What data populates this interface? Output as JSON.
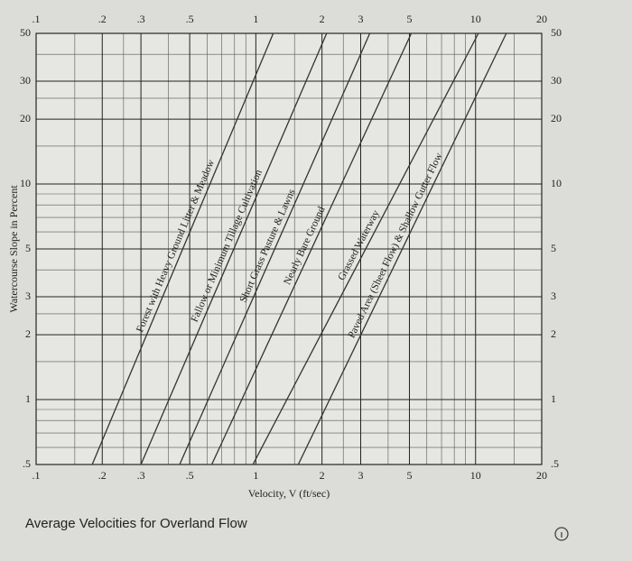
{
  "chart_data": {
    "type": "line",
    "log_x": true,
    "log_y": true,
    "grid": true,
    "caption": "Average Velocities for Overland Flow",
    "xlabel": "Velocity, V (ft/sec)",
    "ylabel": "Watercourse Slope in Percent",
    "xlim": [
      0.1,
      20
    ],
    "ylim": [
      0.5,
      50
    ],
    "xticks": [
      {
        "value": 0.1,
        "label": ".1"
      },
      {
        "value": 0.2,
        "label": ".2"
      },
      {
        "value": 0.3,
        "label": ".3"
      },
      {
        "value": 0.5,
        "label": ".5"
      },
      1,
      2,
      3,
      5,
      10,
      20
    ],
    "yticks": [
      {
        "value": 0.5,
        "label": ".5"
      },
      1,
      2,
      3,
      5,
      10,
      20,
      30,
      50
    ],
    "xminorticks": [
      0.15,
      0.25,
      0.4,
      0.6,
      0.7,
      0.8,
      0.9,
      1.5,
      2.5,
      4,
      6,
      7,
      8,
      9,
      15
    ],
    "yminorticks": [
      0.6,
      0.7,
      0.8,
      0.9,
      1.5,
      2.5,
      4,
      6,
      7,
      8,
      9,
      15,
      25,
      40
    ],
    "series": [
      {
        "name": "Forest with Heavy Ground Litter & Meadow",
        "color": "#333333",
        "x": [
          0.18,
          1.2
        ],
        "values": [
          0.5,
          50
        ]
      },
      {
        "name": "Fallow or Minimum Tillage Cultivation",
        "color": "#333333",
        "x": [
          0.3,
          2.1
        ],
        "values": [
          0.5,
          50
        ]
      },
      {
        "name": "Short Grass Pasture & Lawns",
        "color": "#333333",
        "x": [
          0.45,
          3.3
        ],
        "values": [
          0.5,
          50
        ]
      },
      {
        "name": "Nearly Bare Ground",
        "color": "#333333",
        "x": [
          0.63,
          5.1
        ],
        "values": [
          0.5,
          50
        ]
      },
      {
        "name": "Grassed Waterway",
        "color": "#333333",
        "x": [
          0.97,
          10.3
        ],
        "values": [
          0.5,
          50
        ]
      },
      {
        "name": "Paved Area (Sheet Flow) & Shallow Gutter Flow",
        "color": "#333333",
        "x": [
          1.56,
          13.8
        ],
        "values": [
          0.5,
          50
        ]
      }
    ]
  }
}
